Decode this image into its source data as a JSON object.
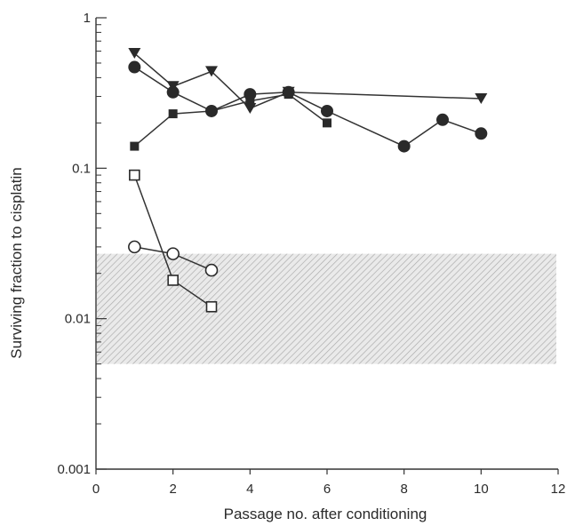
{
  "chart_data": {
    "type": "scatter",
    "xlabel": "Passage no. after conditioning",
    "ylabel": "Surviving fraction to cisplatin",
    "xlim": [
      0,
      12
    ],
    "ylim": [
      0.001,
      1
    ],
    "yscale": "log",
    "x_ticks": [
      0,
      2,
      4,
      6,
      8,
      10,
      12
    ],
    "y_ticks": [
      {
        "value": 0.001,
        "label": "0.001"
      },
      {
        "value": 0.01,
        "label": "0.01"
      },
      {
        "value": 0.1,
        "label": "0.1"
      },
      {
        "value": 1,
        "label": "1"
      }
    ],
    "grid": false,
    "shaded_band": {
      "y_from": 0.005,
      "y_to": 0.027,
      "x_from": 0,
      "x_to": 12
    },
    "series": [
      {
        "marker": "triangle-down-filled",
        "points": [
          [
            1,
            0.58
          ],
          [
            2,
            0.35
          ],
          [
            3,
            0.44
          ],
          [
            4,
            0.25
          ],
          [
            5,
            0.32
          ],
          [
            10,
            0.29
          ]
        ]
      },
      {
        "marker": "circle-filled",
        "points": [
          [
            1,
            0.47
          ],
          [
            2,
            0.32
          ],
          [
            3,
            0.24
          ],
          [
            4,
            0.31
          ],
          [
            5,
            0.32
          ],
          [
            6,
            0.24
          ],
          [
            8,
            0.14
          ],
          [
            9,
            0.21
          ],
          [
            10,
            0.17
          ]
        ]
      },
      {
        "marker": "square-filled",
        "points": [
          [
            1,
            0.14
          ],
          [
            2,
            0.23
          ],
          [
            3,
            0.24
          ],
          [
            4,
            0.28
          ],
          [
            5,
            0.31
          ],
          [
            6,
            0.2
          ]
        ]
      },
      {
        "marker": "square-open",
        "points": [
          [
            1,
            0.09
          ],
          [
            2,
            0.018
          ],
          [
            3,
            0.012
          ]
        ]
      },
      {
        "marker": "circle-open",
        "points": [
          [
            1,
            0.03
          ],
          [
            2,
            0.027
          ],
          [
            3,
            0.021
          ]
        ]
      }
    ]
  }
}
